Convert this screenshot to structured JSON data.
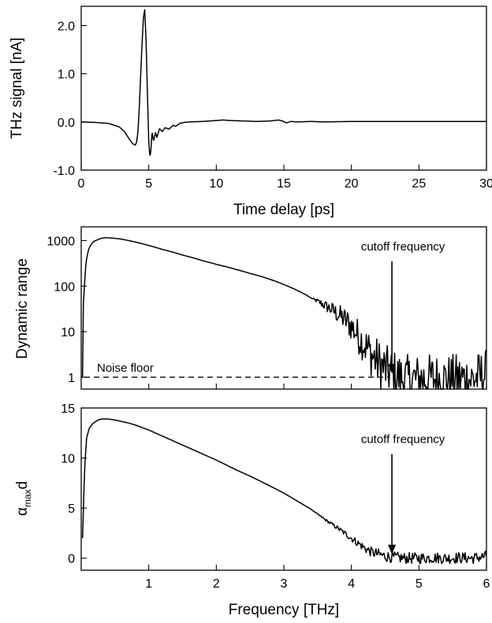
{
  "chart_data": [
    {
      "id": "top",
      "type": "line",
      "xlabel": "Time delay [ps]",
      "ylabel": "THz signal [nA]",
      "xlim": [
        0,
        30
      ],
      "ylim": [
        -1.0,
        2.4
      ],
      "xticks": [
        0,
        5,
        10,
        15,
        20,
        25,
        30
      ],
      "xtick_labels": [
        "0",
        "5",
        "10",
        "15",
        "20",
        "25",
        "30"
      ],
      "yticks": [
        -1.0,
        0.0,
        1.0,
        2.0
      ],
      "ytick_labels": [
        "-1.0",
        "0.0",
        "1.0",
        "2.0"
      ],
      "y_scale": "linear",
      "grid": false,
      "series": [
        {
          "x": [
            0,
            1,
            2,
            2.8,
            3.2,
            3.5,
            3.8,
            4.0,
            4.1,
            4.2,
            4.3,
            4.45,
            4.6,
            4.7,
            4.8,
            4.9,
            5.0,
            5.08,
            5.15,
            5.25,
            5.35,
            5.5,
            5.6,
            5.8,
            6.0,
            6.2,
            6.5,
            6.8,
            7.0,
            7.3,
            7.6,
            8.0,
            9.0,
            10.0,
            10.5,
            11.0,
            12.0,
            13.0,
            14.0,
            14.6,
            14.9,
            15.2,
            15.5,
            16.0,
            17.0,
            18.0,
            20.0,
            25.0,
            30.0
          ],
          "y": [
            0.0,
            -0.01,
            -0.03,
            -0.1,
            -0.2,
            -0.33,
            -0.45,
            -0.48,
            -0.42,
            -0.2,
            0.3,
            1.3,
            2.15,
            2.33,
            1.7,
            0.6,
            -0.4,
            -0.72,
            -0.62,
            -0.2,
            -0.4,
            -0.22,
            -0.32,
            -0.14,
            -0.2,
            -0.12,
            -0.15,
            -0.07,
            -0.09,
            -0.03,
            -0.01,
            0.0,
            0.01,
            0.03,
            0.04,
            0.03,
            0.02,
            0.01,
            0.02,
            0.04,
            0.02,
            -0.02,
            0.01,
            0.0,
            0.01,
            0.0,
            0.01,
            0.01,
            0.01
          ]
        }
      ]
    },
    {
      "id": "middle",
      "type": "line",
      "xlabel": "",
      "ylabel": "Dynamic range",
      "xlim": [
        0,
        6
      ],
      "ylim": [
        0.55,
        2000
      ],
      "y_scale": "log",
      "xticks": [
        1,
        2,
        3,
        4,
        5,
        6
      ],
      "xtick_labels": [],
      "yticks": [
        1,
        10,
        100,
        1000
      ],
      "ytick_labels": [
        "1",
        "10",
        "100",
        "1000"
      ],
      "grid": false,
      "series": [
        {
          "x": [
            0.02,
            0.05,
            0.08,
            0.12,
            0.18,
            0.25,
            0.3,
            0.35,
            0.4,
            0.5,
            0.6,
            0.7,
            0.8,
            1.0,
            1.2,
            1.5,
            1.8,
            2.0,
            2.3,
            2.5,
            2.8,
            3.0,
            3.2,
            3.4,
            3.6,
            3.8,
            4.0,
            4.1,
            4.2,
            4.3,
            4.4,
            4.5,
            4.6,
            4.7,
            4.8,
            5.0,
            5.2,
            5.4,
            5.6,
            5.8,
            6.0
          ],
          "y": [
            1,
            100,
            400,
            700,
            950,
            1050,
            1120,
            1150,
            1150,
            1120,
            1070,
            1000,
            930,
            780,
            640,
            480,
            360,
            300,
            230,
            190,
            140,
            108,
            80,
            55,
            38,
            24,
            13,
            8,
            5,
            3,
            2,
            1.5,
            1.2,
            1.0,
            0.9,
            0.9,
            0.95,
            0.9,
            0.95,
            0.9,
            1.2
          ],
          "noise_start": 3.4,
          "noise_level": 0.55
        }
      ],
      "reference_line": {
        "y": 1,
        "label": "Noise floor"
      },
      "annotation": {
        "text": "cutoff frequency",
        "x": 4.6,
        "arrow_from_y": 350,
        "arrow_to_y": 1.2
      }
    },
    {
      "id": "bottom",
      "type": "line",
      "xlabel": "Frequency [THz]",
      "ylabel_main": "α",
      "ylabel_sub": "max",
      "ylabel_tail": "d",
      "xlim": [
        0,
        6
      ],
      "ylim": [
        -1.2,
        15
      ],
      "y_scale": "linear",
      "xticks": [
        1,
        2,
        3,
        4,
        5,
        6
      ],
      "xtick_labels": [
        "1",
        "2",
        "3",
        "4",
        "5",
        "6"
      ],
      "yticks": [
        0,
        5,
        10,
        15
      ],
      "ytick_labels": [
        "0",
        "5",
        "10",
        "15"
      ],
      "grid": false,
      "series": [
        {
          "x": [
            0.02,
            0.05,
            0.08,
            0.12,
            0.18,
            0.25,
            0.3,
            0.4,
            0.5,
            0.7,
            0.8,
            1.0,
            1.2,
            1.5,
            1.8,
            2.0,
            2.3,
            2.5,
            2.8,
            3.0,
            3.2,
            3.4,
            3.6,
            3.8,
            4.0,
            4.1,
            4.2,
            4.3,
            4.4,
            4.5,
            4.6,
            4.7,
            4.8,
            5.0,
            5.2,
            5.4,
            5.6,
            5.8,
            6.0
          ],
          "y": [
            2,
            9,
            12,
            13,
            13.5,
            13.8,
            13.9,
            13.9,
            13.8,
            13.5,
            13.3,
            12.8,
            12.2,
            11.3,
            10.4,
            9.8,
            8.8,
            8.2,
            7.2,
            6.5,
            5.7,
            4.9,
            3.9,
            3.0,
            2.0,
            1.5,
            1.0,
            0.6,
            0.4,
            0.2,
            0.1,
            0.05,
            0.0,
            0.0,
            0.05,
            0.0,
            0.05,
            0.0,
            0.2
          ],
          "noise_start": 3.4,
          "noise_level": 0.35
        }
      ],
      "annotation": {
        "text": "cutoff frequency",
        "x": 4.6,
        "arrow_from_y": 10.4,
        "arrow_to_y": 0.4
      }
    }
  ]
}
